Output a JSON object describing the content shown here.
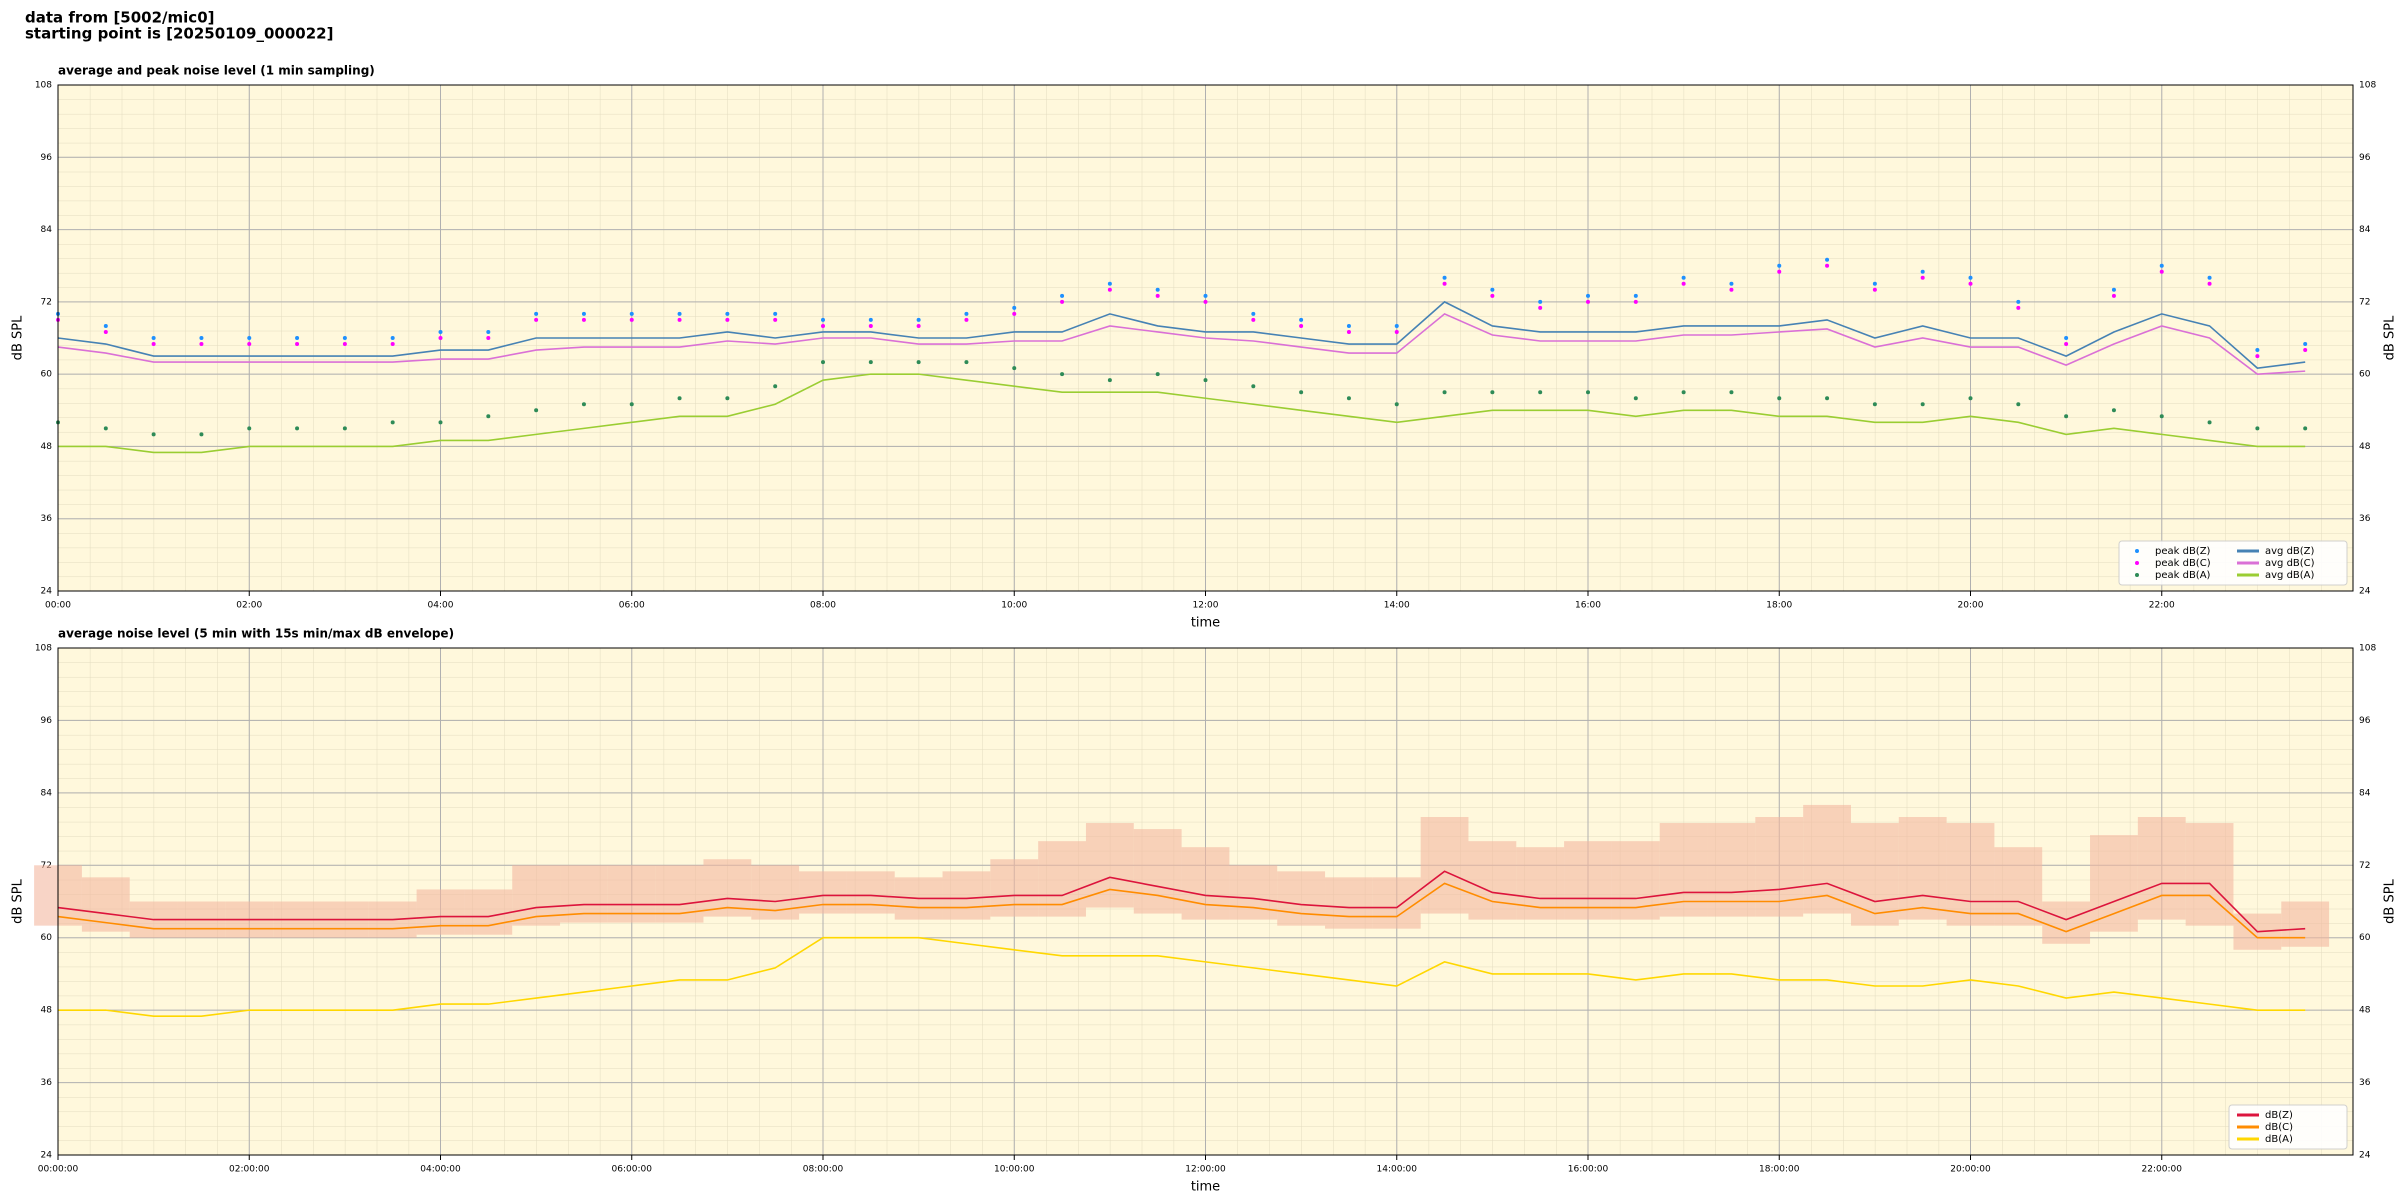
{
  "header": {
    "lines": [
      "data from [5002/mic0]",
      "starting point is [20250109_000022]"
    ]
  },
  "chart_data": [
    {
      "type": "line",
      "title": "average and peak noise level (1 min sampling)",
      "xlabel": "time",
      "ylabel": "dB SPL",
      "background": "#fff8dc",
      "grid": true,
      "legend": "lower right",
      "legend_columns": 2,
      "xlim": [
        0,
        24
      ],
      "ylim": [
        24,
        108
      ],
      "yticks": [
        24,
        36,
        48,
        60,
        72,
        84,
        96,
        108
      ],
      "xticks": [
        {
          "value": 0,
          "label": "00:00"
        },
        {
          "value": 2,
          "label": "02:00"
        },
        {
          "value": 4,
          "label": "04:00"
        },
        {
          "value": 6,
          "label": "06:00"
        },
        {
          "value": 8,
          "label": "08:00"
        },
        {
          "value": 10,
          "label": "10:00"
        },
        {
          "value": 12,
          "label": "12:00"
        },
        {
          "value": 14,
          "label": "14:00"
        },
        {
          "value": 16,
          "label": "16:00"
        },
        {
          "value": 18,
          "label": "18:00"
        },
        {
          "value": 20,
          "label": "20:00"
        },
        {
          "value": 22,
          "label": "22:00"
        }
      ],
      "x": [
        0,
        0.5,
        1,
        1.5,
        2,
        2.5,
        3,
        3.5,
        4,
        4.5,
        5,
        5.5,
        6,
        6.5,
        7,
        7.5,
        8,
        8.5,
        9,
        9.5,
        10,
        10.5,
        11,
        11.5,
        12,
        12.5,
        13,
        13.5,
        14,
        14.5,
        15,
        15.5,
        16,
        16.5,
        17,
        17.5,
        18,
        18.5,
        19,
        19.5,
        20,
        20.5,
        21,
        21.5,
        22,
        22.5,
        23,
        23.5
      ],
      "series": [
        {
          "name": "peak dB(Z)",
          "style": "dots",
          "color": "#1e90ff",
          "values": [
            70,
            68,
            66,
            66,
            66,
            66,
            66,
            66,
            67,
            67,
            70,
            70,
            70,
            70,
            70,
            70,
            69,
            69,
            69,
            70,
            71,
            73,
            75,
            74,
            73,
            70,
            69,
            68,
            68,
            76,
            74,
            72,
            73,
            73,
            76,
            75,
            78,
            79,
            75,
            77,
            76,
            72,
            66,
            74,
            78,
            76,
            64,
            65
          ]
        },
        {
          "name": "peak dB(C)",
          "style": "dots",
          "color": "#ff00ff",
          "values": [
            69,
            67,
            65,
            65,
            65,
            65,
            65,
            65,
            66,
            66,
            69,
            69,
            69,
            69,
            69,
            69,
            68,
            68,
            68,
            69,
            70,
            72,
            74,
            73,
            72,
            69,
            68,
            67,
            67,
            75,
            73,
            71,
            72,
            72,
            75,
            74,
            77,
            78,
            74,
            76,
            75,
            71,
            65,
            73,
            77,
            75,
            63,
            64
          ]
        },
        {
          "name": "peak dB(A)",
          "style": "dots",
          "color": "#2e8b57",
          "values": [
            52,
            51,
            50,
            50,
            51,
            51,
            51,
            52,
            52,
            53,
            54,
            55,
            55,
            56,
            56,
            58,
            62,
            62,
            62,
            62,
            61,
            60,
            59,
            60,
            59,
            58,
            57,
            56,
            55,
            57,
            57,
            57,
            57,
            56,
            57,
            57,
            56,
            56,
            55,
            55,
            56,
            55,
            53,
            54,
            53,
            52,
            51,
            51
          ]
        },
        {
          "name": "avg dB(Z)",
          "style": "line",
          "color": "#4682b4",
          "values": [
            66,
            65,
            63,
            63,
            63,
            63,
            63,
            63,
            64,
            64,
            66,
            66,
            66,
            66,
            67,
            66,
            67,
            67,
            66,
            66,
            67,
            67,
            70,
            68,
            67,
            67,
            66,
            65,
            65,
            72,
            68,
            67,
            67,
            67,
            68,
            68,
            68,
            69,
            66,
            68,
            66,
            66,
            63,
            67,
            70,
            68,
            61,
            62
          ]
        },
        {
          "name": "avg dB(C)",
          "style": "line",
          "color": "#da70d6",
          "values": [
            64.5,
            63.5,
            62,
            62,
            62,
            62,
            62,
            62,
            62.5,
            62.5,
            64,
            64.5,
            64.5,
            64.5,
            65.5,
            65,
            66,
            66,
            65,
            65,
            65.5,
            65.5,
            68,
            67,
            66,
            65.5,
            64.5,
            63.5,
            63.5,
            70,
            66.5,
            65.5,
            65.5,
            65.5,
            66.5,
            66.5,
            67,
            67.5,
            64.5,
            66,
            64.5,
            64.5,
            61.5,
            65,
            68,
            66,
            60,
            60.5
          ]
        },
        {
          "name": "avg dB(A)",
          "style": "line",
          "color": "#9acd32",
          "values": [
            48,
            48,
            47,
            47,
            48,
            48,
            48,
            48,
            49,
            49,
            50,
            51,
            52,
            53,
            53,
            55,
            59,
            60,
            60,
            59,
            58,
            57,
            57,
            57,
            56,
            55,
            54,
            53,
            52,
            53,
            54,
            54,
            54,
            53,
            54,
            54,
            53,
            53,
            52,
            52,
            53,
            52,
            50,
            51,
            50,
            49,
            48,
            48
          ]
        }
      ]
    },
    {
      "type": "line",
      "title": "average noise level (5 min with 15s min/max dB envelope)",
      "xlabel": "time",
      "ylabel": "dB SPL",
      "background": "#fff8dc",
      "grid": true,
      "legend": "lower right",
      "legend_columns": 1,
      "xlim": [
        0,
        24
      ],
      "ylim": [
        24,
        108
      ],
      "yticks": [
        24,
        36,
        48,
        60,
        72,
        84,
        96,
        108
      ],
      "xticks": [
        {
          "value": 0,
          "label": "00:00:00"
        },
        {
          "value": 2,
          "label": "02:00:00"
        },
        {
          "value": 4,
          "label": "04:00:00"
        },
        {
          "value": 6,
          "label": "06:00:00"
        },
        {
          "value": 8,
          "label": "08:00:00"
        },
        {
          "value": 10,
          "label": "10:00:00"
        },
        {
          "value": 12,
          "label": "12:00:00"
        },
        {
          "value": 14,
          "label": "14:00:00"
        },
        {
          "value": 16,
          "label": "16:00:00"
        },
        {
          "value": 18,
          "label": "18:00:00"
        },
        {
          "value": 20,
          "label": "20:00:00"
        },
        {
          "value": 22,
          "label": "22:00:00"
        }
      ],
      "x": [
        0,
        0.5,
        1,
        1.5,
        2,
        2.5,
        3,
        3.5,
        4,
        4.5,
        5,
        5.5,
        6,
        6.5,
        7,
        7.5,
        8,
        8.5,
        9,
        9.5,
        10,
        10.5,
        11,
        11.5,
        12,
        12.5,
        13,
        13.5,
        14,
        14.5,
        15,
        15.5,
        16,
        16.5,
        17,
        17.5,
        18,
        18.5,
        19,
        19.5,
        20,
        20.5,
        21,
        21.5,
        22,
        22.5,
        23,
        23.5
      ],
      "envelope": {
        "color": "#f4b8a0",
        "high": [
          72,
          70,
          66,
          66,
          66,
          66,
          66,
          66,
          68,
          68,
          72,
          72,
          72,
          72,
          73,
          72,
          71,
          71,
          70,
          71,
          73,
          76,
          79,
          78,
          75,
          72,
          71,
          70,
          70,
          80,
          76,
          75,
          76,
          76,
          79,
          79,
          80,
          82,
          79,
          80,
          79,
          75,
          66,
          77,
          80,
          79,
          64,
          66
        ],
        "low": [
          62,
          61,
          60,
          60,
          60,
          60,
          60,
          60,
          60.5,
          60.5,
          62,
          62.5,
          62.5,
          62.5,
          63.5,
          63,
          64,
          64,
          63,
          63,
          63.5,
          63.5,
          65,
          64,
          63,
          63,
          62,
          61.5,
          61.5,
          64,
          63,
          63,
          63,
          63,
          63.5,
          63.5,
          63.5,
          64,
          62,
          63,
          62,
          62,
          59,
          61,
          63,
          62,
          58,
          58.5
        ]
      },
      "series": [
        {
          "name": "dB(Z)",
          "style": "line",
          "color": "#dc143c",
          "values": [
            65,
            64,
            63,
            63,
            63,
            63,
            63,
            63,
            63.5,
            63.5,
            65,
            65.5,
            65.5,
            65.5,
            66.5,
            66,
            67,
            67,
            66.5,
            66.5,
            67,
            67,
            70,
            68.5,
            67,
            66.5,
            65.5,
            65,
            65,
            71,
            67.5,
            66.5,
            66.5,
            66.5,
            67.5,
            67.5,
            68,
            69,
            66,
            67,
            66,
            66,
            63,
            66,
            69,
            69,
            61,
            61.5
          ]
        },
        {
          "name": "dB(C)",
          "style": "line",
          "color": "#ff8c00",
          "values": [
            63.5,
            62.5,
            61.5,
            61.5,
            61.5,
            61.5,
            61.5,
            61.5,
            62,
            62,
            63.5,
            64,
            64,
            64,
            65,
            64.5,
            65.5,
            65.5,
            65,
            65,
            65.5,
            65.5,
            68,
            67,
            65.5,
            65,
            64,
            63.5,
            63.5,
            69,
            66,
            65,
            65,
            65,
            66,
            66,
            66,
            67,
            64,
            65,
            64,
            64,
            61,
            64,
            67,
            67,
            60,
            60
          ]
        },
        {
          "name": "dB(A)",
          "style": "line",
          "color": "#ffd700",
          "values": [
            48,
            48,
            47,
            47,
            48,
            48,
            48,
            48,
            49,
            49,
            50,
            51,
            52,
            53,
            53,
            55,
            60,
            60,
            60,
            59,
            58,
            57,
            57,
            57,
            56,
            55,
            54,
            53,
            52,
            56,
            54,
            54,
            54,
            53,
            54,
            54,
            53,
            53,
            52,
            52,
            53,
            52,
            50,
            51,
            50,
            49,
            48,
            48
          ]
        }
      ]
    }
  ]
}
